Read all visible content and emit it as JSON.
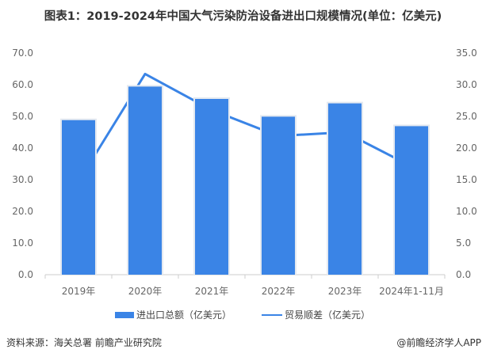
{
  "title": "图表1：2019-2024年中国大气污染防治设备进出口规模情况(单位：亿美元)",
  "chart_data": {
    "type": "bar+line",
    "categories": [
      "2019年",
      "2020年",
      "2021年",
      "2022年",
      "2023年",
      "2024年1-11月"
    ],
    "series": [
      {
        "name": "进出口总额（亿美元）",
        "type": "bar",
        "axis": "left",
        "values": [
          48.8,
          59.4,
          55.5,
          49.9,
          54.1,
          46.9
        ],
        "color": "#3a84e6"
      },
      {
        "name": "贸易顺差（亿美元）",
        "type": "line",
        "axis": "right",
        "values": [
          14.7,
          31.7,
          26.0,
          21.9,
          22.5,
          17.1
        ],
        "color": "#3a84e6"
      }
    ],
    "left_axis": {
      "ylim": [
        0,
        70
      ],
      "ticks": [
        "0.0",
        "10.0",
        "20.0",
        "30.0",
        "40.0",
        "50.0",
        "60.0",
        "70.0"
      ]
    },
    "right_axis": {
      "ylim": [
        0,
        35
      ],
      "ticks": [
        "0.0",
        "5.0",
        "10.0",
        "15.0",
        "20.0",
        "25.0",
        "30.0",
        "35.0"
      ]
    },
    "grid": false,
    "legend_position": "bottom"
  },
  "source": "资料来源：海关总署 前瞻产业研究院",
  "credit": "@前瞻经济学人APP"
}
